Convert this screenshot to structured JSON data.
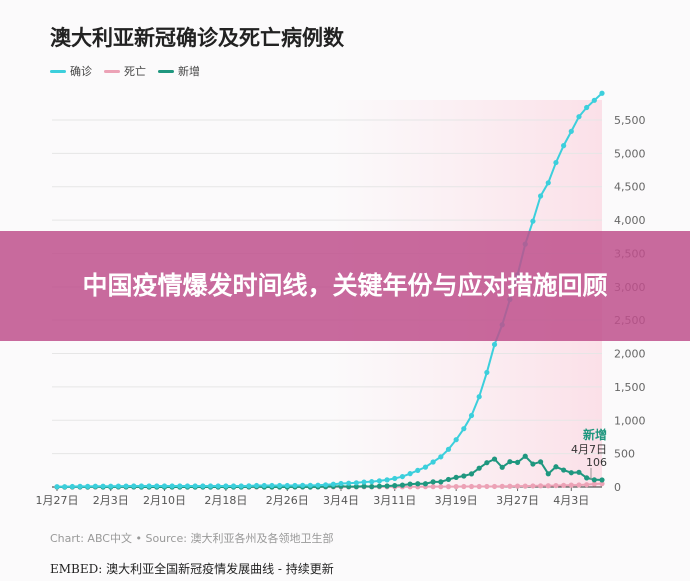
{
  "chart_data": {
    "type": "line",
    "title": "澳大利亚新冠确诊及死亡病例数",
    "legend_position": "top-left",
    "grid": true,
    "x": [
      "01-27",
      "01-28",
      "01-29",
      "01-30",
      "01-31",
      "02-01",
      "02-02",
      "02-03",
      "02-04",
      "02-05",
      "02-06",
      "02-07",
      "02-08",
      "02-09",
      "02-10",
      "02-11",
      "02-12",
      "02-13",
      "02-14",
      "02-15",
      "02-16",
      "02-17",
      "02-18",
      "02-19",
      "02-20",
      "02-21",
      "02-22",
      "02-23",
      "02-24",
      "02-25",
      "02-26",
      "02-27",
      "02-28",
      "02-29",
      "03-01",
      "03-02",
      "03-03",
      "03-04",
      "03-05",
      "03-06",
      "03-07",
      "03-08",
      "03-09",
      "03-10",
      "03-11",
      "03-12",
      "03-13",
      "03-14",
      "03-15",
      "03-16",
      "03-17",
      "03-18",
      "03-19",
      "03-20",
      "03-21",
      "03-22",
      "03-23",
      "03-24",
      "03-25",
      "03-26",
      "03-27",
      "03-28",
      "03-29",
      "03-30",
      "03-31",
      "04-01",
      "04-02",
      "04-03",
      "04-04",
      "04-05",
      "04-06",
      "04-07"
    ],
    "x_tick_labels": [
      "1月27日",
      "2月3日",
      "2月10日",
      "2月18日",
      "2月26日",
      "3月4日",
      "3月11日",
      "3月19日",
      "3月27日",
      "4月3日"
    ],
    "x_tick_index": [
      0,
      7,
      14,
      22,
      30,
      37,
      44,
      52,
      60,
      67
    ],
    "ylim": [
      0,
      5900
    ],
    "y_ticks": [
      "0",
      "500",
      "1,000",
      "1,500",
      "2,000",
      "2,500",
      "3,000",
      "3,500",
      "4,000",
      "4,500",
      "5,000",
      "5,500"
    ],
    "series": [
      {
        "name": "确诊",
        "color": "#3ccfdc",
        "values": [
          5,
          5,
          7,
          9,
          9,
          12,
          12,
          12,
          13,
          14,
          15,
          15,
          15,
          15,
          15,
          15,
          15,
          15,
          15,
          15,
          15,
          15,
          15,
          15,
          15,
          17,
          22,
          22,
          22,
          22,
          22,
          23,
          25,
          25,
          27,
          33,
          41,
          52,
          57,
          63,
          74,
          80,
          92,
          107,
          128,
          156,
          200,
          249,
          298,
          375,
          452,
          565,
          709,
          874,
          1071,
          1353,
          1717,
          2136,
          2431,
          2810,
          3179,
          3640,
          3984,
          4361,
          4559,
          4862,
          5116,
          5330,
          5550,
          5687,
          5795,
          5901
        ]
      },
      {
        "name": "死亡",
        "color": "#eca2b6",
        "values": [
          0,
          0,
          0,
          0,
          0,
          0,
          0,
          0,
          0,
          0,
          0,
          0,
          0,
          0,
          0,
          0,
          0,
          0,
          0,
          0,
          0,
          0,
          0,
          0,
          0,
          0,
          0,
          0,
          0,
          0,
          0,
          0,
          0,
          0,
          1,
          1,
          1,
          2,
          2,
          2,
          3,
          3,
          3,
          3,
          3,
          3,
          3,
          3,
          5,
          5,
          5,
          6,
          6,
          7,
          7,
          7,
          8,
          8,
          9,
          11,
          13,
          13,
          16,
          18,
          19,
          21,
          24,
          28,
          30,
          35,
          45,
          50
        ]
      },
      {
        "name": "新增",
        "color": "#1f977f",
        "values": [
          1,
          0,
          2,
          2,
          0,
          3,
          0,
          0,
          1,
          1,
          1,
          0,
          0,
          0,
          0,
          0,
          0,
          0,
          0,
          0,
          0,
          0,
          0,
          0,
          0,
          2,
          5,
          0,
          0,
          0,
          0,
          1,
          2,
          0,
          2,
          6,
          8,
          11,
          5,
          6,
          11,
          6,
          12,
          15,
          21,
          28,
          44,
          49,
          49,
          77,
          77,
          113,
          144,
          165,
          197,
          282,
          364,
          419,
          295,
          379,
          369,
          461,
          344,
          377,
          198,
          303,
          254,
          214,
          220,
          137,
          108,
          106
        ]
      }
    ],
    "annotation": {
      "series": "新增",
      "date": "4月7日",
      "value": "106"
    }
  },
  "source": "Chart: ABC中文 • Source: 澳大利亚各州及各领地卫生部",
  "embed": "EMBED: 澳大利亚全国新冠疫情发展曲线 - 持续更新",
  "banner": "中国疫情爆发时间线，关键年份与应对措施回顾"
}
